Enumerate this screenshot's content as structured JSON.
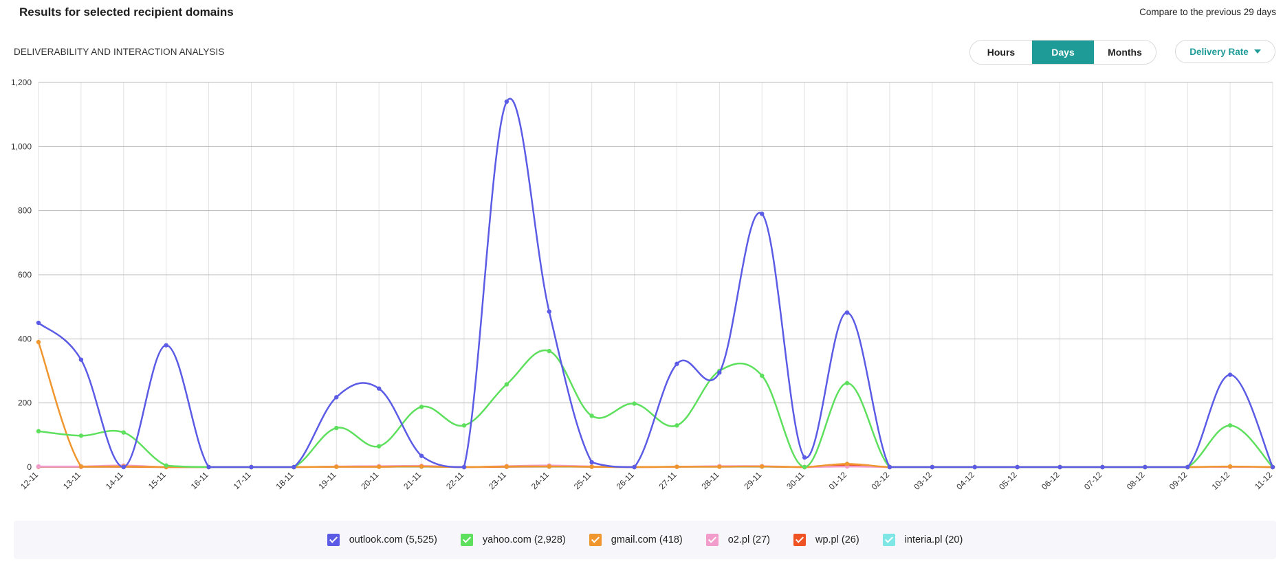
{
  "header": {
    "title": "Results for selected recipient domains",
    "compare": "Compare to the previous 29 days"
  },
  "section": {
    "title": "DELIVERABILITY AND INTERACTION ANALYSIS"
  },
  "controls": {
    "granularity": [
      {
        "label": "Hours",
        "active": false
      },
      {
        "label": "Days",
        "active": true
      },
      {
        "label": "Months",
        "active": false
      }
    ],
    "metric_label": "Delivery Rate",
    "accent": "#1f9b97"
  },
  "legend": [
    {
      "label": "outlook.com (5,525)",
      "color": "#5b5be6"
    },
    {
      "label": "yahoo.com (2,928)",
      "color": "#5ee05e"
    },
    {
      "label": "gmail.com (418)",
      "color": "#f0962e"
    },
    {
      "label": "o2.pl (27)",
      "color": "#f29ccb"
    },
    {
      "label": "wp.pl (26)",
      "color": "#ef5223"
    },
    {
      "label": "interia.pl (20)",
      "color": "#7fe6e6"
    }
  ],
  "chart_data": {
    "type": "line",
    "categories": [
      "12-11",
      "13-11",
      "14-11",
      "15-11",
      "16-11",
      "17-11",
      "18-11",
      "19-11",
      "20-11",
      "21-11",
      "22-11",
      "23-11",
      "24-11",
      "25-11",
      "26-11",
      "27-11",
      "28-11",
      "29-11",
      "30-11",
      "01-12",
      "02-12",
      "03-12",
      "04-12",
      "05-12",
      "06-12",
      "07-12",
      "08-12",
      "09-12",
      "10-12",
      "11-12"
    ],
    "ylim": [
      0,
      1200
    ],
    "yticks": [
      "0",
      "200",
      "400",
      "600",
      "800",
      "1,000",
      "1,200"
    ],
    "grid": true,
    "series": [
      {
        "name": "outlook.com (5,525)",
        "color": "#5b5be6",
        "values": [
          450,
          335,
          0,
          380,
          0,
          0,
          0,
          218,
          245,
          35,
          0,
          1140,
          485,
          15,
          0,
          322,
          295,
          790,
          30,
          482,
          0,
          0,
          0,
          0,
          0,
          0,
          0,
          0,
          288,
          0
        ]
      },
      {
        "name": "yahoo.com (2,928)",
        "color": "#5ee05e",
        "values": [
          112,
          98,
          108,
          5,
          0,
          0,
          0,
          122,
          65,
          188,
          130,
          258,
          362,
          160,
          198,
          130,
          300,
          285,
          0,
          262,
          0,
          0,
          0,
          0,
          0,
          0,
          0,
          0,
          130,
          0
        ]
      },
      {
        "name": "gmail.com (418)",
        "color": "#f0962e",
        "values": [
          390,
          2,
          2,
          0,
          0,
          0,
          0,
          1,
          1,
          2,
          0,
          2,
          2,
          1,
          0,
          1,
          1,
          2,
          0,
          10,
          0,
          0,
          0,
          0,
          0,
          0,
          0,
          0,
          2,
          0
        ]
      },
      {
        "name": "o2.pl (27)",
        "color": "#f29ccb",
        "values": [
          2,
          2,
          5,
          0,
          0,
          0,
          0,
          2,
          3,
          4,
          0,
          3,
          5,
          2,
          0,
          1,
          3,
          3,
          0,
          2,
          0,
          0,
          0,
          0,
          0,
          0,
          0,
          0,
          1,
          0
        ]
      },
      {
        "name": "wp.pl (26)",
        "color": "#ef5223",
        "values": [
          1,
          1,
          1,
          0,
          0,
          0,
          0,
          1,
          1,
          2,
          0,
          1,
          2,
          1,
          0,
          1,
          2,
          2,
          0,
          6,
          0,
          0,
          0,
          0,
          0,
          0,
          0,
          0,
          1,
          0
        ]
      },
      {
        "name": "interia.pl (20)",
        "color": "#7fe6e6",
        "values": [
          1,
          1,
          1,
          0,
          0,
          0,
          0,
          1,
          1,
          1,
          0,
          1,
          1,
          1,
          0,
          1,
          1,
          1,
          0,
          4,
          0,
          0,
          0,
          0,
          0,
          0,
          0,
          0,
          1,
          0
        ]
      }
    ]
  }
}
